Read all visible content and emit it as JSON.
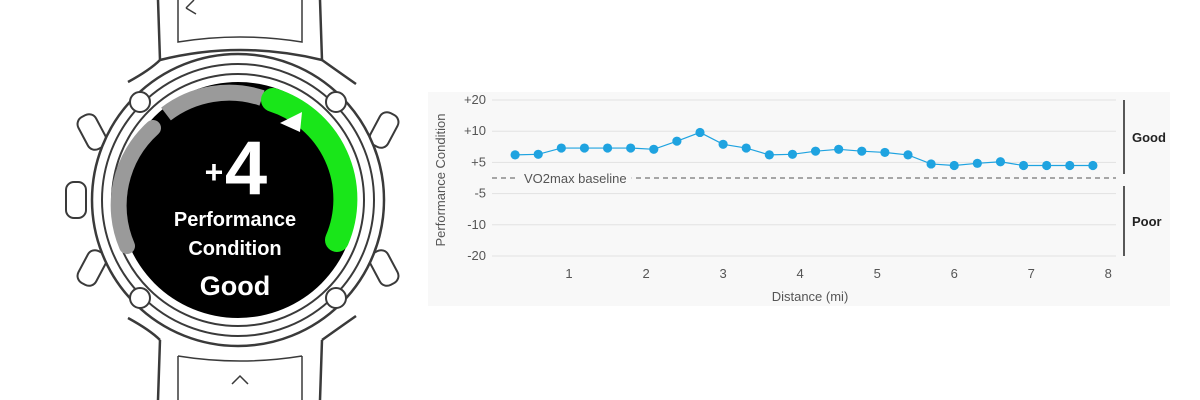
{
  "watch": {
    "sign": "+",
    "value": "4",
    "label_line1": "Performance",
    "label_line2": "Condition",
    "status": "Good",
    "gauge_value": 4,
    "gauge_range": [
      -20,
      20
    ],
    "colors": {
      "face": "#000000",
      "good": "#19e619",
      "track": "#9a9a9a",
      "outline": "#3a3a3a"
    }
  },
  "chart_data": {
    "type": "line",
    "title": "",
    "xlabel": "Distance (mi)",
    "ylabel": "Performance Condition",
    "xlim": [
      0,
      8.1
    ],
    "ylim": [
      -20,
      20
    ],
    "x_ticks": [
      1,
      2,
      3,
      4,
      5,
      6,
      7,
      8
    ],
    "x_tick_labels": [
      "1",
      "2",
      "3",
      "4",
      "5",
      "6",
      "7",
      "8"
    ],
    "y_ticks": [
      20,
      10,
      5,
      -5,
      -10,
      -20
    ],
    "y_tick_labels": [
      "+20",
      "+10",
      "+5",
      "-5",
      "-10",
      "-20"
    ],
    "baseline": {
      "label": "VO2max baseline",
      "value": 0
    },
    "zones": [
      {
        "label": "Good",
        "from": 0,
        "to": 20
      },
      {
        "label": "Poor",
        "from": -20,
        "to": 0
      }
    ],
    "series": [
      {
        "name": "Performance Condition",
        "color": "#1fa3e0",
        "x": [
          0.3,
          0.6,
          0.9,
          1.2,
          1.5,
          1.8,
          2.1,
          2.4,
          2.7,
          3.0,
          3.3,
          3.6,
          3.9,
          4.2,
          4.5,
          4.8,
          5.1,
          5.4,
          5.7,
          6.0,
          6.3,
          6.6,
          6.9,
          7.2,
          7.5,
          7.8
        ],
        "y": [
          6.2,
          6.3,
          7.3,
          7.3,
          7.3,
          7.3,
          7.1,
          8.4,
          9.8,
          7.9,
          7.3,
          6.2,
          6.3,
          6.8,
          7.1,
          6.8,
          6.6,
          6.2,
          4.5,
          4.0,
          4.7,
          5.1,
          4.0,
          4.0,
          4.0,
          4.0
        ]
      }
    ]
  }
}
